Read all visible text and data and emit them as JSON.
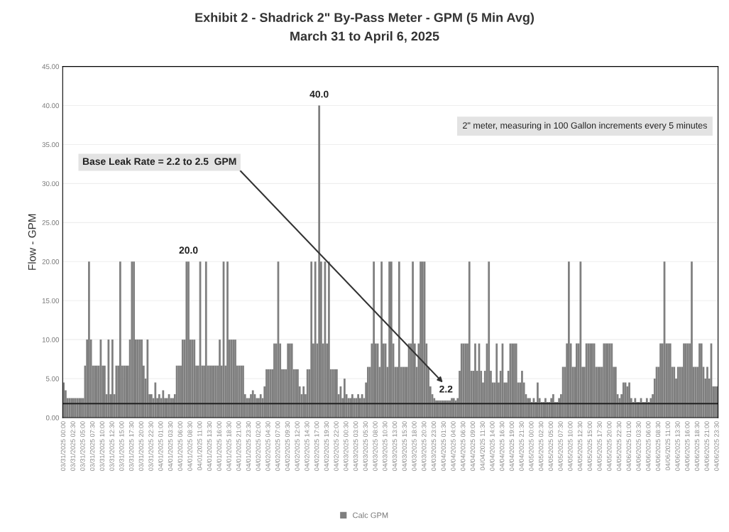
{
  "chart_data": {
    "type": "bar",
    "title": "Exhibit 2 - Shadrick 2\" By-Pass Meter - GPM (5 Min Avg)",
    "subtitle": "March 31 to April 6, 2025",
    "ylabel": "Flow - GPM",
    "categories": [
      "03/31/2025 00:00",
      null,
      null,
      null,
      null,
      "03/31/2025 02:30",
      null,
      null,
      null,
      null,
      "03/31/2025 05:00",
      null,
      null,
      null,
      null,
      "03/31/2025 07:30",
      null,
      null,
      null,
      null,
      "03/31/2025 10:00",
      null,
      null,
      null,
      null,
      "03/31/2025 12:30",
      null,
      null,
      null,
      null,
      "03/31/2025 15:00",
      null,
      null,
      null,
      null,
      "03/31/2025 17:30",
      null,
      null,
      null,
      null,
      "03/31/2025 20:00",
      null,
      null,
      null,
      null,
      "03/31/2025 22:30",
      null,
      null,
      null,
      null,
      "04/01/2025 01:00",
      null,
      null,
      null,
      null,
      "04/01/2025 03:30",
      null,
      null,
      null,
      null,
      "04/01/2025 06:00",
      null,
      null,
      null,
      null,
      "04/01/2025 08:30",
      null,
      null,
      null,
      null,
      "04/01/2025 11:00",
      null,
      null,
      null,
      null,
      "04/01/2025 13:30",
      null,
      null,
      null,
      null,
      "04/01/2025 16:00",
      null,
      null,
      null,
      null,
      "04/01/2025 18:30",
      null,
      null,
      null,
      null,
      "04/01/2025 21:00",
      null,
      null,
      null,
      null,
      "04/01/2025 23:30",
      null,
      null,
      null,
      null,
      "04/02/2025 02:00",
      null,
      null,
      null,
      null,
      "04/02/2025 04:30",
      null,
      null,
      null,
      null,
      "04/02/2025 07:00",
      null,
      null,
      null,
      null,
      "04/02/2025 09:30",
      null,
      null,
      null,
      null,
      "04/02/2025 12:00",
      null,
      null,
      null,
      null,
      "04/02/2025 14:30",
      null,
      null,
      null,
      null,
      "04/02/2025 17:00",
      null,
      null,
      null,
      null,
      "04/02/2025 19:30",
      null,
      null,
      null,
      null,
      "04/02/2025 22:00",
      null,
      null,
      null,
      null,
      "04/03/2025 00:30",
      null,
      null,
      null,
      null,
      "04/03/2025 03:00",
      null,
      null,
      null,
      null,
      "04/03/2025 05:30",
      null,
      null,
      null,
      null,
      "04/03/2025 08:00",
      null,
      null,
      null,
      null,
      "04/03/2025 10:30",
      null,
      null,
      null,
      null,
      "04/03/2025 13:00",
      null,
      null,
      null,
      null,
      "04/03/2025 15:30",
      null,
      null,
      null,
      null,
      "04/03/2025 18:00",
      null,
      null,
      null,
      null,
      "04/03/2025 20:30",
      null,
      null,
      null,
      null,
      "04/03/2025 23:00",
      null,
      null,
      null,
      null,
      "04/04/2025 01:30",
      null,
      null,
      null,
      null,
      "04/04/2025 04:00",
      null,
      null,
      null,
      null,
      "04/04/2025 06:30",
      null,
      null,
      null,
      null,
      "04/04/2025 09:00",
      null,
      null,
      null,
      null,
      "04/04/2025 11:30",
      null,
      null,
      null,
      null,
      "04/04/2025 14:00",
      null,
      null,
      null,
      null,
      "04/04/2025 16:30",
      null,
      null,
      null,
      null,
      "04/04/2025 19:00",
      null,
      null,
      null,
      null,
      "04/04/2025 21:30",
      null,
      null,
      null,
      null,
      "04/05/2025 00:00",
      null,
      null,
      null,
      null,
      "04/05/2025 02:30",
      null,
      null,
      null,
      null,
      "04/05/2025 05:00",
      null,
      null,
      null,
      null,
      "04/05/2025 07:30",
      null,
      null,
      null,
      null,
      "04/05/2025 10:00",
      null,
      null,
      null,
      null,
      "04/05/2025 12:30",
      null,
      null,
      null,
      null,
      "04/05/2025 15:00",
      null,
      null,
      null,
      null,
      "04/05/2025 17:30",
      null,
      null,
      null,
      null,
      "04/05/2025 20:00",
      null,
      null,
      null,
      null,
      "04/05/2025 22:30",
      null,
      null,
      null,
      null,
      "04/06/2025 01:00",
      null,
      null,
      null,
      null,
      "04/06/2025 03:30",
      null,
      null,
      null,
      null,
      "04/06/2025 06:00",
      null,
      null,
      null,
      null,
      "04/06/2025 08:30",
      null,
      null,
      null,
      null,
      "04/06/2025 11:00",
      null,
      null,
      null,
      null,
      "04/06/2025 13:30",
      null,
      null,
      null,
      null,
      "04/06/2025 16:00",
      null,
      null,
      null,
      null,
      "04/06/2025 18:30",
      null,
      null,
      null,
      null,
      "04/06/2025 21:00",
      null,
      null,
      null,
      null,
      "04/06/2025 23:30"
    ],
    "series": [
      {
        "name": "Calc GPM",
        "color": "#7f7f7f",
        "values": [
          4.5,
          3.5,
          2.5,
          2.5,
          2.5,
          2.5,
          2.5,
          2.5,
          2.5,
          2.5,
          2.5,
          6.67,
          10,
          20,
          10,
          6.67,
          6.67,
          6.67,
          6.67,
          10,
          6.67,
          6.67,
          3,
          10,
          3,
          10,
          3,
          6.67,
          6.67,
          20,
          6.67,
          6.67,
          6.67,
          6.67,
          10,
          20,
          20,
          10,
          10,
          10,
          10,
          6.67,
          5,
          10,
          3,
          3,
          2.5,
          4.5,
          2.5,
          3,
          2.5,
          3.5,
          2.5,
          2.5,
          3,
          2.5,
          2.5,
          3,
          6.67,
          6.67,
          6.67,
          10,
          10,
          20,
          20,
          10,
          10,
          10,
          6.67,
          6.67,
          20,
          6.67,
          6.67,
          20,
          6.67,
          6.67,
          6.67,
          6.67,
          6.67,
          6.67,
          10,
          6.67,
          20,
          6.67,
          20,
          10,
          10,
          10,
          10,
          6.67,
          6.67,
          6.67,
          6.67,
          3,
          2.5,
          2.5,
          3,
          3.5,
          3,
          2.5,
          2.5,
          3,
          2.5,
          4,
          6.2,
          6.2,
          6.2,
          6.2,
          9.5,
          9.5,
          20,
          9.5,
          6.2,
          6.2,
          6.2,
          9.5,
          9.5,
          9.5,
          6.2,
          6.2,
          6.2,
          4,
          3,
          4,
          3,
          6.2,
          6.2,
          20,
          9.5,
          20,
          9.5,
          40,
          20,
          9.5,
          20,
          9.5,
          20,
          6.2,
          6.2,
          6.2,
          6.2,
          3,
          4,
          2.5,
          5,
          3,
          2.5,
          2.5,
          3,
          2.5,
          2.5,
          3,
          2.5,
          3,
          2.5,
          4.5,
          6.5,
          6.5,
          9.5,
          20,
          9.5,
          9.5,
          6.5,
          20,
          9.5,
          9.5,
          6.5,
          20,
          20,
          9.5,
          6.5,
          6.5,
          20,
          6.5,
          6.5,
          6.5,
          6.5,
          9.5,
          9.5,
          20,
          9.5,
          6.5,
          9.5,
          20,
          20,
          20,
          9.5,
          6.5,
          4,
          3,
          2.5,
          2.2,
          2.2,
          2.2,
          2.2,
          2.2,
          2.2,
          2.2,
          2.2,
          2.5,
          2.5,
          2.2,
          2.5,
          6,
          9.5,
          9.5,
          9.5,
          9.5,
          20,
          6,
          6,
          9.5,
          6,
          9.5,
          6,
          4.5,
          6,
          9.5,
          20,
          6,
          4.5,
          4.5,
          9.5,
          4.5,
          6,
          9.5,
          4.5,
          4.5,
          6,
          9.5,
          9.5,
          9.5,
          9.5,
          4.5,
          4.5,
          6,
          4.5,
          3,
          2.5,
          2.5,
          2,
          2.5,
          2,
          4.5,
          2.5,
          2,
          2,
          2.5,
          2,
          2,
          2.5,
          3,
          2,
          2,
          2.5,
          3,
          6.5,
          6.5,
          9.5,
          20,
          9.5,
          6.5,
          6.5,
          9.5,
          9.5,
          20,
          6.5,
          6.5,
          9.5,
          9.5,
          9.5,
          9.5,
          9.5,
          6.5,
          6.5,
          6.5,
          6.5,
          9.5,
          9.5,
          9.5,
          9.5,
          9.5,
          6.5,
          6.5,
          3,
          2.5,
          3,
          4.5,
          4.5,
          4,
          4.5,
          2.5,
          2,
          2.5,
          2,
          2,
          2.5,
          2,
          2,
          2.5,
          2,
          2.5,
          3,
          5,
          6.5,
          6.5,
          9.5,
          9.5,
          20,
          9.5,
          9.5,
          9.5,
          6.5,
          6.5,
          5,
          6.5,
          6.5,
          6.5,
          9.5,
          9.5,
          9.5,
          9.5,
          20,
          6.5,
          6.5,
          6.5,
          9.5,
          9.5,
          6.5,
          5,
          6.5,
          5,
          9.5,
          4,
          4,
          4
        ],
        "value_labels": [
          null,
          null,
          null,
          null,
          null,
          null,
          null,
          null,
          null,
          null,
          null,
          null,
          null,
          null,
          null,
          null,
          null,
          null,
          null,
          null,
          null,
          null,
          null,
          null,
          null,
          null,
          null,
          null,
          null,
          null,
          null,
          null,
          null,
          null,
          null,
          null,
          null,
          null,
          null,
          null,
          null,
          null,
          null,
          null,
          null,
          null,
          null,
          null,
          null,
          null,
          null,
          null,
          null,
          null,
          null,
          null,
          null,
          null,
          null,
          null,
          null,
          null,
          null,
          null,
          "20.0",
          null,
          null,
          null,
          null,
          null,
          null,
          null,
          null,
          null,
          null,
          null,
          null,
          null,
          null,
          null,
          null,
          null,
          null,
          null,
          null,
          null,
          null,
          null,
          null,
          null,
          null,
          null,
          null,
          null,
          null,
          null,
          null,
          null,
          null,
          null,
          null,
          null,
          null,
          null,
          null,
          null,
          null,
          null,
          null,
          null,
          null,
          null,
          null,
          null,
          null,
          null,
          null,
          null,
          null,
          null,
          null,
          null,
          null,
          null,
          null,
          null,
          null,
          null,
          null,
          null,
          null,
          "40.0",
          null,
          null,
          null,
          null,
          null,
          null,
          null,
          null,
          null,
          null,
          null,
          null,
          null,
          null,
          null,
          null,
          null,
          null,
          null,
          null,
          null,
          null,
          null,
          null,
          null,
          null,
          null,
          null,
          null,
          null,
          null,
          null,
          null,
          null,
          null,
          null,
          null,
          null,
          null,
          null,
          null,
          null,
          null,
          null,
          null,
          null,
          null,
          null,
          null,
          null,
          null,
          null,
          null,
          null,
          null,
          null,
          null,
          null,
          null,
          null,
          null,
          null,
          null,
          null,
          "2.2",
          null,
          null,
          null,
          null,
          null,
          null,
          null,
          null,
          null,
          null,
          null,
          null,
          null,
          null,
          null,
          null,
          null,
          null,
          null,
          null,
          null,
          null,
          null,
          null,
          null,
          null,
          null,
          null,
          null,
          null,
          null,
          null,
          null,
          null,
          null,
          null,
          null,
          null,
          null,
          null,
          null,
          null,
          null,
          null,
          null,
          null,
          null,
          null,
          null,
          null,
          null,
          null,
          null,
          null,
          null,
          null,
          null,
          null,
          null,
          null,
          null,
          null,
          null,
          null,
          null,
          null,
          null,
          null,
          null,
          null,
          null,
          null,
          null,
          null,
          null,
          null,
          null,
          null,
          null,
          null,
          null,
          null,
          null,
          null,
          null,
          null,
          null,
          null,
          null,
          null,
          null,
          null,
          null,
          null,
          null,
          null,
          null,
          null,
          null,
          null,
          null,
          null,
          null,
          null,
          null,
          null,
          null,
          null,
          null,
          null,
          null,
          null,
          null,
          null,
          null,
          null,
          null,
          null,
          null,
          null,
          null,
          null,
          null,
          null,
          null,
          null,
          null,
          null,
          null,
          null,
          null,
          null,
          null,
          null,
          null,
          null,
          null,
          null,
          null
        ]
      }
    ],
    "ylim": [
      0,
      45
    ],
    "yticks": [
      {
        "value": 0,
        "label": "0.00"
      },
      {
        "value": 5,
        "label": "5.00"
      },
      {
        "value": 10,
        "label": "10.00"
      },
      {
        "value": 15,
        "label": "15.00"
      },
      {
        "value": 20,
        "label": "20.00"
      },
      {
        "value": 25,
        "label": "25.00"
      },
      {
        "value": 30,
        "label": "30.00"
      },
      {
        "value": 35,
        "label": "35.00"
      },
      {
        "value": 40,
        "label": "40.00"
      },
      {
        "value": 45,
        "label": "45.00"
      }
    ],
    "ref_lines": [
      {
        "axis": "y",
        "value": 1.8,
        "color": "#222222"
      }
    ],
    "annotations": [
      "Base Leak Rate = 2.2 to 2.5  GPM",
      "2\" meter, measuring in 100 Gallon increments every 5 minutes"
    ],
    "grid": "y",
    "legend": "bottom"
  }
}
